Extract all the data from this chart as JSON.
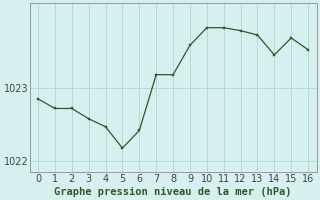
{
  "x": [
    0,
    1,
    2,
    3,
    4,
    5,
    6,
    7,
    8,
    9,
    10,
    11,
    12,
    13,
    14,
    15,
    16
  ],
  "y": [
    1022.85,
    1022.72,
    1022.72,
    1022.58,
    1022.47,
    1022.18,
    1022.42,
    1023.18,
    1023.18,
    1023.58,
    1023.82,
    1023.82,
    1023.78,
    1023.72,
    1023.45,
    1023.68,
    1023.52
  ],
  "line_color": "#2d5a27",
  "marker_color": "#2d5a27",
  "bg_color": "#d6f0ef",
  "grid_color": "#aad8d3",
  "spine_color": "#999999",
  "title": "Graphe pression niveau de la mer (hPa)",
  "title_color": "#2d5a27",
  "ylim": [
    1021.85,
    1024.15
  ],
  "yticks": [
    1022,
    1023
  ],
  "xticks": [
    0,
    1,
    2,
    3,
    4,
    5,
    6,
    7,
    8,
    9,
    10,
    11,
    12,
    13,
    14,
    15,
    16
  ],
  "title_fontsize": 7.5,
  "tick_fontsize": 7.0,
  "figwidth": 3.2,
  "figheight": 2.0,
  "dpi": 100
}
